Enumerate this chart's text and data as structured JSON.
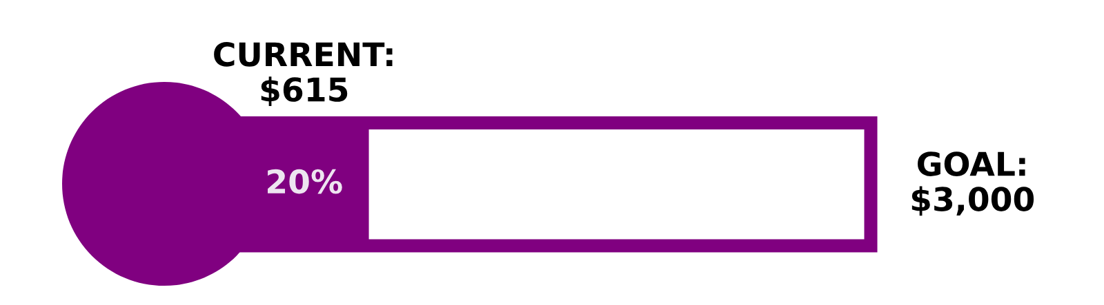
{
  "chart_data": {
    "type": "other",
    "categories": [
      null,
      null
    ],
    "values": [
      615,
      3000
    ],
    "color": "#800080",
    "value_labels": [
      "CURRENT:\n$615",
      "GOAL:\n$3,000"
    ],
    "annotations": [
      "20%"
    ]
  }
}
